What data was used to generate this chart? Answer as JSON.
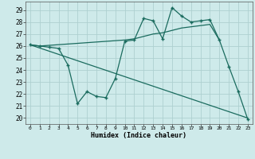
{
  "xlabel": "Humidex (Indice chaleur)",
  "background_color": "#ceeaea",
  "grid_color": "#aed0d0",
  "line_color": "#1a6b5e",
  "xlim": [
    -0.5,
    23.5
  ],
  "ylim": [
    19.5,
    29.7
  ],
  "xticks": [
    0,
    1,
    2,
    3,
    4,
    5,
    6,
    7,
    8,
    9,
    10,
    11,
    12,
    13,
    14,
    15,
    16,
    17,
    18,
    19,
    20,
    21,
    22,
    23
  ],
  "yticks": [
    20,
    21,
    22,
    23,
    24,
    25,
    26,
    27,
    28,
    29
  ],
  "line1_x": [
    0,
    1,
    2,
    3,
    4,
    5,
    6,
    7,
    8,
    9,
    10,
    11,
    12,
    13,
    14,
    15,
    16,
    17,
    18,
    19,
    20,
    21,
    22,
    23
  ],
  "line1_y": [
    26.1,
    26.0,
    25.9,
    25.8,
    24.4,
    21.2,
    22.2,
    21.8,
    21.7,
    23.3,
    26.4,
    26.5,
    28.3,
    28.1,
    26.6,
    29.2,
    28.5,
    28.0,
    28.1,
    28.2,
    26.5,
    24.3,
    22.2,
    19.9
  ],
  "line2_x": [
    0,
    1,
    10,
    11,
    12,
    13,
    14,
    15,
    16,
    17,
    18,
    19,
    20
  ],
  "line2_y": [
    26.1,
    26.0,
    26.5,
    26.6,
    26.8,
    27.0,
    27.1,
    27.3,
    27.5,
    27.6,
    27.7,
    27.8,
    26.5
  ],
  "line3_x": [
    0,
    23
  ],
  "line3_y": [
    26.1,
    20.0
  ],
  "markersize": 2.5,
  "linewidth": 0.9
}
